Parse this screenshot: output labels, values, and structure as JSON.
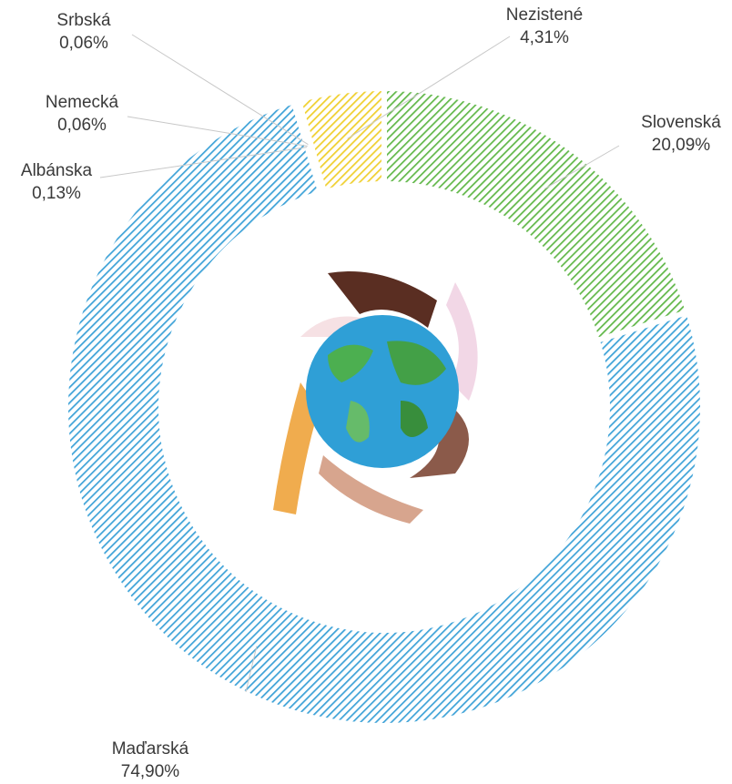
{
  "chart_data": {
    "type": "pie",
    "donut": true,
    "categories": [
      "Slovenská",
      "Maďarská",
      "Albánska",
      "Nemecká",
      "Srbská",
      "Nezistené"
    ],
    "values": [
      20.09,
      74.9,
      0.13,
      0.06,
      0.06,
      4.31
    ],
    "value_labels": [
      "20,09%",
      "74,90%",
      "0,13%",
      "0,06%",
      "0,06%",
      "4,31%"
    ],
    "colors": [
      "#62b84a",
      "#3fa3d8",
      "#e9793a",
      "#9a9a9a",
      "#c0504d",
      "#f0d030"
    ],
    "hatched": true
  }
}
